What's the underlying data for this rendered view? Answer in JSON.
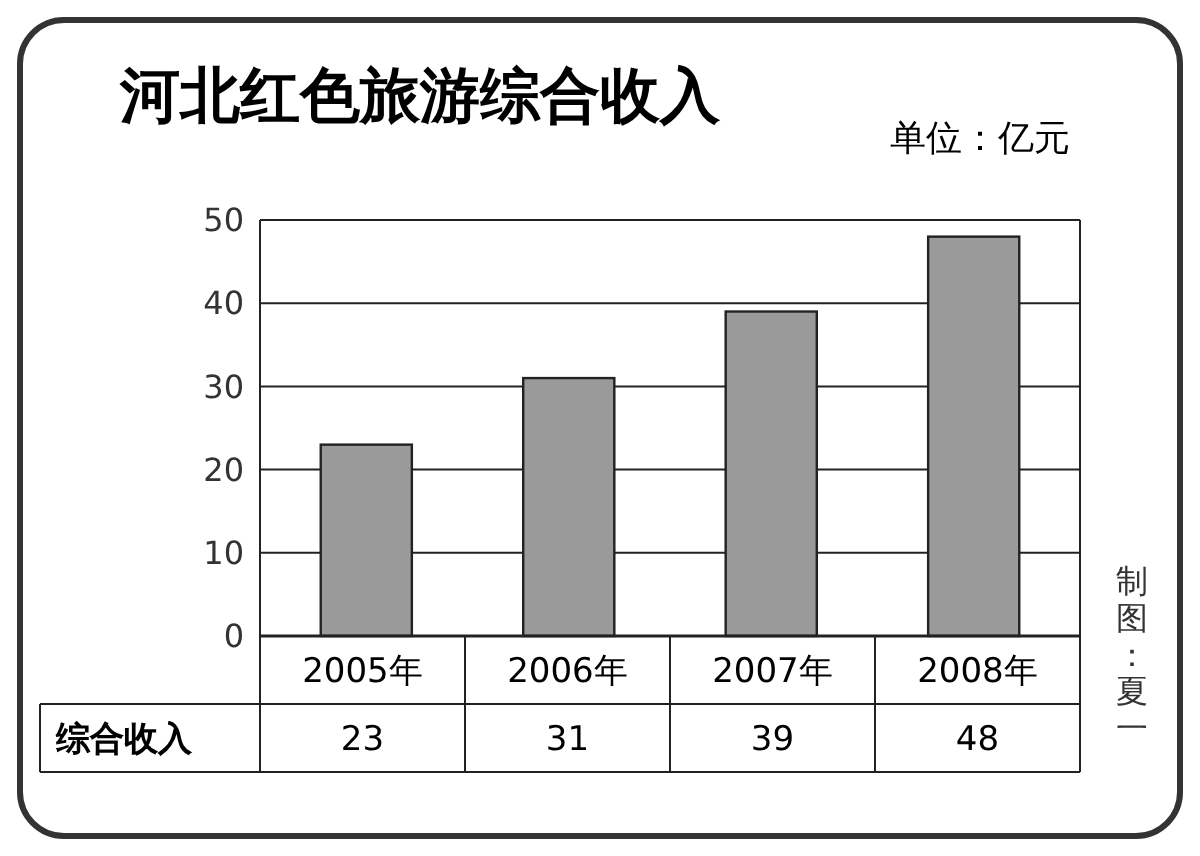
{
  "chart_data": {
    "type": "bar",
    "title": "河北红色旅游综合收入",
    "subtitle": "单位：亿元",
    "annotations": [
      "制图：夏一"
    ],
    "categories": [
      "2005年",
      "2006年",
      "2007年",
      "2008年"
    ],
    "series": [
      {
        "name": "综合收入",
        "color": "#9a9a9a",
        "values": [
          23,
          31,
          39,
          48
        ]
      }
    ],
    "ylim": [
      0,
      50
    ],
    "yticks": [
      0,
      10,
      20,
      30,
      40,
      50
    ],
    "grid": "y",
    "data_labels": true,
    "legend": "bottom left"
  }
}
